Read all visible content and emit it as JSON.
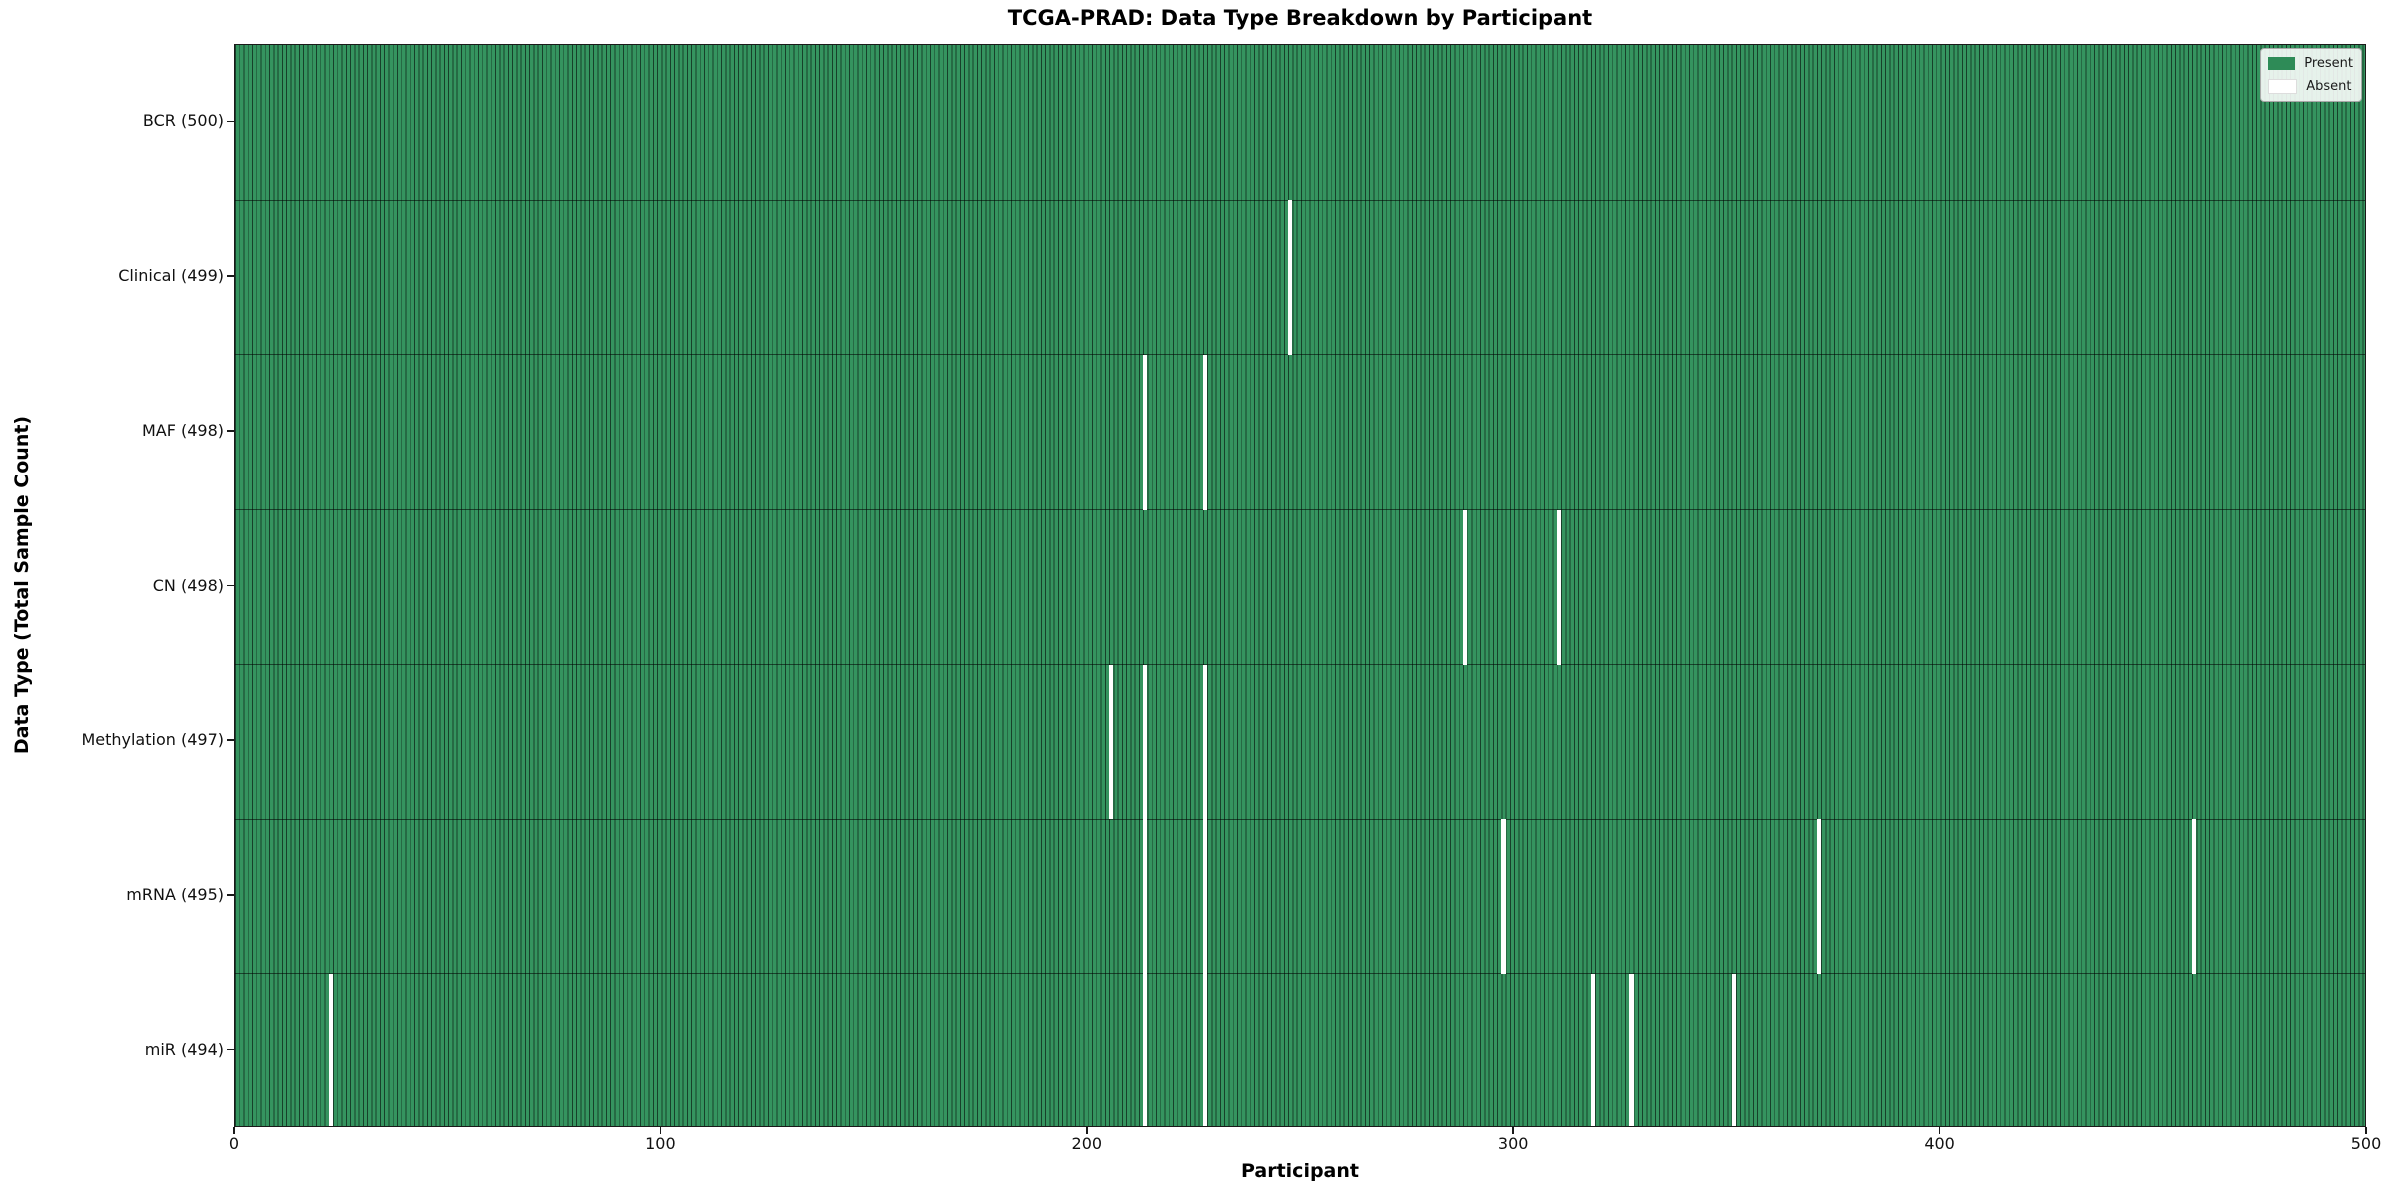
{
  "chart_data": {
    "type": "heatmap",
    "title": "TCGA-PRAD: Data Type Breakdown by Participant",
    "xlabel": "Participant",
    "ylabel": "Data Type (Total Sample Count)",
    "x_range": [
      0,
      500
    ],
    "x_ticks": [
      0,
      100,
      200,
      300,
      400,
      500
    ],
    "grid": false,
    "legend_position": "upper right",
    "legend": [
      {
        "name": "present-swatch",
        "label": "Present"
      },
      {
        "name": "absent-swatch",
        "label": "Absent"
      }
    ],
    "colors": {
      "present": "#2e8b57",
      "absent": "#ffffff",
      "cell_fill": "#35945f",
      "cell_edge": "#17402a"
    },
    "rows": [
      {
        "label": "BCR (500)",
        "data_type": "BCR",
        "total": 500,
        "absent_participants": []
      },
      {
        "label": "Clinical (499)",
        "data_type": "Clinical",
        "total": 499,
        "absent_participants": [
          247
        ]
      },
      {
        "label": "MAF (498)",
        "data_type": "MAF",
        "total": 498,
        "absent_participants": [
          213,
          227
        ]
      },
      {
        "label": "CN (498)",
        "data_type": "CN",
        "total": 498,
        "absent_participants": [
          288,
          310
        ]
      },
      {
        "label": "Methylation (497)",
        "data_type": "Methylation",
        "total": 497,
        "absent_participants": [
          205,
          213,
          227
        ]
      },
      {
        "label": "mRNA (495)",
        "data_type": "mRNA",
        "total": 495,
        "absent_participants": [
          213,
          227,
          297,
          371,
          459
        ]
      },
      {
        "label": "miR (494)",
        "data_type": "miR",
        "total": 494,
        "absent_participants": [
          22,
          213,
          227,
          318,
          327,
          351
        ]
      }
    ]
  }
}
